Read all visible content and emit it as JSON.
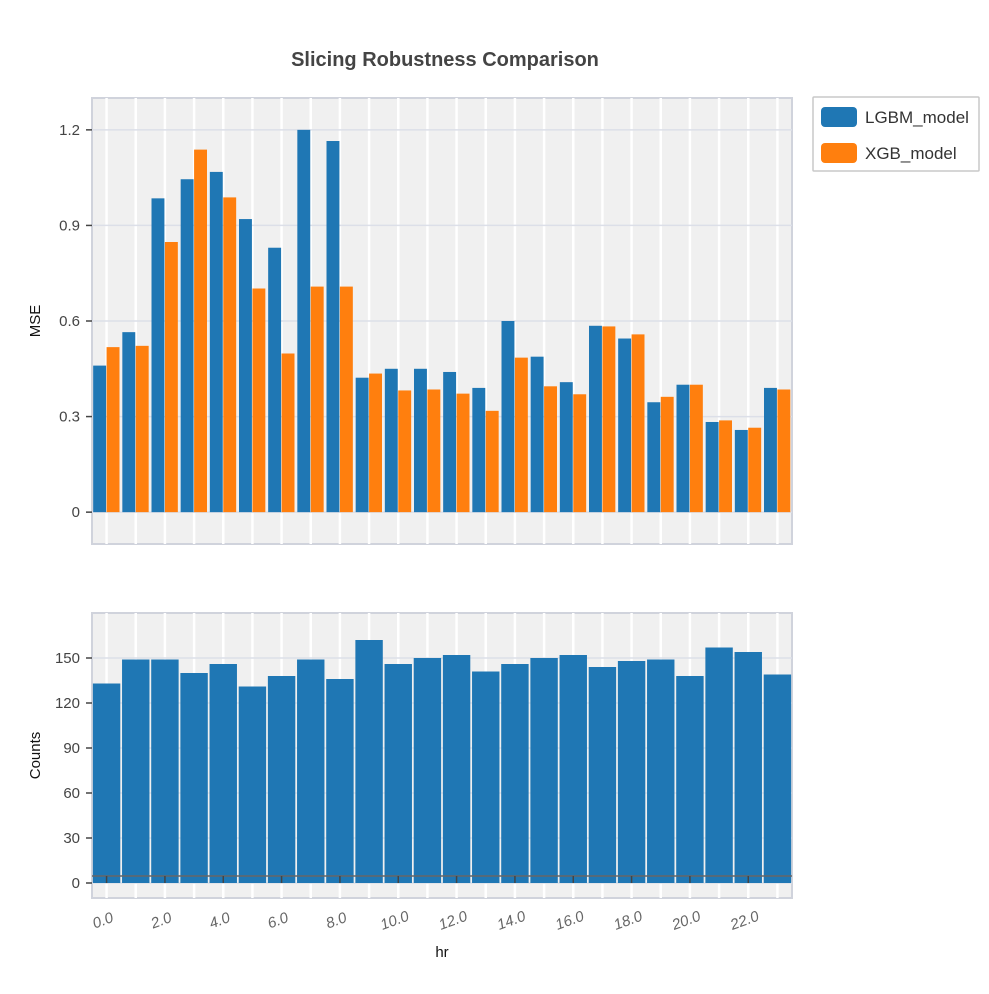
{
  "chart_data": [
    {
      "type": "bar",
      "title": "Slicing Robustness Comparison",
      "xlabel": "",
      "ylabel": "MSE",
      "ylim": [
        -0.1,
        1.3
      ],
      "y_ticks": [
        "0",
        "0.3",
        "0.6",
        "0.9",
        "1.2"
      ],
      "y_tick_values": [
        0,
        0.3,
        0.6,
        0.9,
        1.2
      ],
      "grid": true,
      "legend_position": "top-right outside",
      "categories": [
        "0.0",
        "1.0",
        "2.0",
        "3.0",
        "4.0",
        "5.0",
        "6.0",
        "7.0",
        "8.0",
        "9.0",
        "10.0",
        "11.0",
        "12.0",
        "13.0",
        "14.0",
        "15.0",
        "16.0",
        "17.0",
        "18.0",
        "19.0",
        "20.0",
        "21.0",
        "22.0",
        "23.0"
      ],
      "series": [
        {
          "name": "LGBM_model",
          "color": "#1f77b4",
          "values": [
            0.46,
            0.565,
            0.985,
            1.045,
            1.068,
            0.92,
            0.83,
            1.2,
            1.165,
            0.422,
            0.45,
            0.45,
            0.44,
            0.39,
            0.6,
            0.488,
            0.408,
            0.585,
            0.545,
            0.345,
            0.4,
            0.283,
            0.258,
            0.39
          ]
        },
        {
          "name": "XGB_model",
          "color": "#ff7f0e",
          "values": [
            0.518,
            0.522,
            0.848,
            1.138,
            0.988,
            0.702,
            0.498,
            0.708,
            0.708,
            0.435,
            0.382,
            0.385,
            0.372,
            0.318,
            0.485,
            0.395,
            0.37,
            0.583,
            0.558,
            0.362,
            0.4,
            0.288,
            0.265,
            0.385
          ]
        }
      ]
    },
    {
      "type": "bar",
      "title": "",
      "xlabel": "hr",
      "ylabel": "Counts",
      "ylim": [
        -10,
        180
      ],
      "y_ticks": [
        "0",
        "30",
        "60",
        "90",
        "120",
        "150"
      ],
      "y_tick_values": [
        0,
        30,
        60,
        90,
        120,
        150
      ],
      "x_tick_labels": [
        "0.0",
        "2.0",
        "4.0",
        "6.0",
        "8.0",
        "10.0",
        "12.0",
        "14.0",
        "16.0",
        "18.0",
        "20.0",
        "22.0"
      ],
      "x_tick_values": [
        0,
        2,
        4,
        6,
        8,
        10,
        12,
        14,
        16,
        18,
        20,
        22
      ],
      "grid": true,
      "categories": [
        "0.0",
        "1.0",
        "2.0",
        "3.0",
        "4.0",
        "5.0",
        "6.0",
        "7.0",
        "8.0",
        "9.0",
        "10.0",
        "11.0",
        "12.0",
        "13.0",
        "14.0",
        "15.0",
        "16.0",
        "17.0",
        "18.0",
        "19.0",
        "20.0",
        "21.0",
        "22.0",
        "23.0"
      ],
      "series": [
        {
          "color": "#1f77b4",
          "values": [
            133,
            149,
            149,
            140,
            146,
            131,
            138,
            149,
            136,
            162,
            146,
            150,
            152,
            141,
            146,
            150,
            152,
            144,
            148,
            149,
            138,
            157,
            154,
            139
          ]
        }
      ]
    }
  ]
}
